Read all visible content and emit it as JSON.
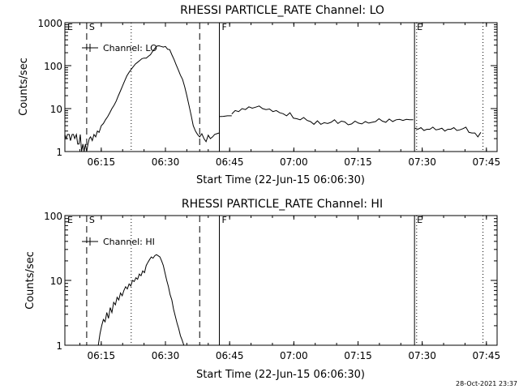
{
  "footer_timestamp": "28-Oct-2021 23:37",
  "chart_data": [
    {
      "type": "line",
      "title": "RHESSI PARTICLE_RATE Channel: LO",
      "xlabel": "Start Time (22-Jun-15 06:06:30)",
      "ylabel": "Counts/sec",
      "x_unit": "minutes since 06:06:30",
      "xlim": [
        0,
        101
      ],
      "ylim": [
        1,
        1000
      ],
      "yscale": "log",
      "grid": false,
      "x_ticks": [
        {
          "label": "06:15",
          "x": 8.5
        },
        {
          "label": "06:30",
          "x": 23.5
        },
        {
          "label": "06:45",
          "x": 38.5
        },
        {
          "label": "07:00",
          "x": 53.5
        },
        {
          "label": "07:15",
          "x": 68.5
        },
        {
          "label": "07:30",
          "x": 83.5
        },
        {
          "label": "07:45",
          "x": 98.5
        }
      ],
      "y_ticks": [
        {
          "label": "1",
          "value": 1
        },
        {
          "label": "10",
          "value": 10
        },
        {
          "label": "100",
          "value": 100
        },
        {
          "label": "1000",
          "value": 1000
        }
      ],
      "legend": {
        "label": "Channel: LO",
        "position": "top-left"
      },
      "markers": [
        {
          "label": "E",
          "x": 0,
          "style": "solid"
        },
        {
          "label": "S",
          "x": 5.1,
          "style": "dashed"
        },
        {
          "label": "",
          "x": 15.5,
          "style": "dotted"
        },
        {
          "label": "",
          "x": 31.5,
          "style": "dashed"
        },
        {
          "label": "F",
          "x": 36.1,
          "style": "solid"
        },
        {
          "label": "E",
          "x": 81.7,
          "style": "solid"
        },
        {
          "label": "",
          "x": 82.2,
          "style": "dotted"
        },
        {
          "label": "",
          "x": 97.7,
          "style": "dotted"
        }
      ],
      "series": [
        {
          "name": "Channel: LO",
          "segments": [
            {
              "x": [
                0,
                0.3,
                0.6,
                1,
                1.3,
                1.7,
                2,
                2.3,
                2.7,
                3,
                3.3,
                3.6,
                3.9,
                4.2,
                4.5,
                4.8,
                5.1,
                5.4,
                5.7,
                6,
                6.4,
                6.8,
                7.2,
                7.6,
                8,
                8.5,
                9,
                9.5,
                10,
                10.5,
                11,
                11.5,
                12,
                12.5,
                13,
                13.5,
                14,
                14.5,
                15,
                15.5,
                16,
                16.5,
                17,
                17.5,
                18,
                18.5,
                19,
                19.5,
                20,
                20.5,
                21,
                21.5,
                22,
                22.5,
                23,
                23.5,
                24,
                24.5,
                25,
                25.5,
                26,
                26.5,
                27,
                27.5,
                28,
                28.5,
                29,
                29.5,
                30,
                30.5,
                31,
                31.5,
                32,
                32.5,
                33,
                33.5,
                34,
                34.5,
                35,
                35.5,
                36
              ],
              "y": [
                2.5,
                2,
                2.5,
                2.5,
                1.8,
                2.5,
                2.5,
                2,
                2.5,
                1.5,
                1.5,
                2.5,
                1,
                1.5,
                1,
                1.5,
                1,
                1.5,
                2,
                2.2,
                1.8,
                2.5,
                2.2,
                3,
                2.8,
                4,
                4.5,
                5.5,
                6.5,
                8,
                10,
                12,
                15,
                20,
                26,
                34,
                45,
                58,
                70,
                82,
                95,
                110,
                120,
                132,
                145,
                150,
                150,
                165,
                180,
                215,
                250,
                285,
                290,
                280,
                270,
                280,
                240,
                235,
                180,
                140,
                105,
                80,
                60,
                48,
                32,
                20,
                12,
                7,
                4,
                3,
                2.5,
                2.2,
                2.6,
                2,
                1.7,
                2.4,
                2,
                2.2,
                2.5,
                2.6,
                2.7
              ]
            },
            {
              "x": [
                36,
                37,
                38,
                39
              ],
              "y": [
                6.5,
                6.6,
                6.8,
                6.8
              ]
            },
            {
              "x": [
                39,
                39.8,
                40.6,
                41.4,
                42.2,
                43,
                43.8,
                44.6,
                45.4,
                46.2,
                47,
                47.8,
                48.6,
                49.4,
                50.2,
                51,
                51.8,
                52.6,
                53.4,
                54.2,
                55,
                55.8,
                56.6,
                57.4,
                58.2,
                59,
                59.8,
                60.6,
                61.4,
                62.2,
                63,
                63.8,
                64.6,
                65.4,
                66.2,
                67,
                67.8,
                68.6,
                69.4,
                70.2,
                71,
                71.8,
                72.6,
                73.4,
                74.2,
                75,
                75.8,
                76.6,
                77.4,
                78.2,
                79,
                79.8,
                80.6,
                81.4
              ],
              "y": [
                7.5,
                9,
                8.5,
                10,
                9.5,
                11,
                10.2,
                10.8,
                11.5,
                10,
                9.5,
                9.8,
                8.5,
                9,
                8,
                7.6,
                6.8,
                8,
                6,
                5.8,
                5.5,
                6.2,
                5.3,
                5,
                4.3,
                5.2,
                4.3,
                4.7,
                4.5,
                4.8,
                5.5,
                4.5,
                5.1,
                4.9,
                4.2,
                4.4,
                5.1,
                4.6,
                4.4,
                5,
                4.6,
                4.8,
                5,
                5.8,
                5.1,
                4.8,
                5.7,
                5,
                5.5,
                5.6,
                5.3,
                5.6,
                5.5,
                5.5
              ]
            },
            {
              "x": [
                81.8,
                82.5,
                83.2,
                83.9,
                84.6,
                85.3,
                86,
                86.7,
                87.4,
                88.1,
                88.8,
                89.5,
                90.2,
                90.9,
                91.6,
                92.3,
                93,
                93.7,
                94.4,
                95.1,
                95.8,
                96.5,
                97.2
              ],
              "y": [
                3.5,
                3.3,
                3.6,
                3.1,
                3.3,
                3.3,
                3.7,
                3.2,
                3.3,
                3.5,
                3,
                3.3,
                3.3,
                3.6,
                3.1,
                3.2,
                3.4,
                3.7,
                2.8,
                2.7,
                2.7,
                2.2,
                2.8
              ]
            }
          ]
        }
      ]
    },
    {
      "type": "line",
      "title": "RHESSI PARTICLE_RATE Channel: HI",
      "xlabel": "Start Time (22-Jun-15 06:06:30)",
      "ylabel": "Counts/sec",
      "x_unit": "minutes since 06:06:30",
      "xlim": [
        0,
        101
      ],
      "ylim": [
        1,
        100
      ],
      "yscale": "log",
      "grid": false,
      "x_ticks": [
        {
          "label": "06:15",
          "x": 8.5
        },
        {
          "label": "06:30",
          "x": 23.5
        },
        {
          "label": "06:45",
          "x": 38.5
        },
        {
          "label": "07:00",
          "x": 53.5
        },
        {
          "label": "07:15",
          "x": 68.5
        },
        {
          "label": "07:30",
          "x": 83.5
        },
        {
          "label": "07:45",
          "x": 98.5
        }
      ],
      "y_ticks": [
        {
          "label": "1",
          "value": 1
        },
        {
          "label": "10",
          "value": 10
        },
        {
          "label": "100",
          "value": 100
        }
      ],
      "legend": {
        "label": "Channel: HI",
        "position": "top-left"
      },
      "markers": [
        {
          "label": "E",
          "x": 0,
          "style": "solid"
        },
        {
          "label": "S",
          "x": 5.1,
          "style": "dashed"
        },
        {
          "label": "",
          "x": 15.5,
          "style": "dotted"
        },
        {
          "label": "",
          "x": 31.5,
          "style": "dashed"
        },
        {
          "label": "F",
          "x": 36.1,
          "style": "solid"
        },
        {
          "label": "E",
          "x": 81.7,
          "style": "solid"
        },
        {
          "label": "",
          "x": 82.2,
          "style": "dotted"
        },
        {
          "label": "",
          "x": 97.7,
          "style": "dotted"
        }
      ],
      "series": [
        {
          "name": "Channel: HI",
          "segments": [
            {
              "x": [
                7.8,
                8.2,
                8.6,
                9,
                9.4,
                9.8,
                10.2,
                10.6,
                11,
                11.4,
                11.8,
                12.2,
                12.6,
                13,
                13.4,
                13.8,
                14.2,
                14.6,
                15,
                15.4,
                15.8,
                16.2,
                16.6,
                17,
                17.4,
                17.8,
                18.2,
                18.6,
                19,
                19.4,
                19.8,
                20.2,
                20.6,
                21,
                21.4,
                21.8,
                22.2,
                22.6,
                23,
                23.4,
                23.8,
                24.2,
                24.6,
                25,
                25.4,
                25.8,
                26.2,
                26.6,
                27,
                27.4,
                27.8
              ],
              "y": [
                1,
                1.5,
                2,
                2.5,
                2.3,
                3.2,
                2.6,
                3.8,
                3.2,
                4.6,
                4.2,
                5.5,
                5,
                6.4,
                5.8,
                7,
                8,
                7.4,
                8.8,
                8.2,
                10,
                9.6,
                11,
                10.4,
                12.5,
                11.8,
                14,
                13.2,
                17,
                19,
                21,
                23,
                22,
                24,
                25,
                24,
                23,
                20,
                17,
                13,
                10,
                8,
                6,
                5,
                3.6,
                2.8,
                2.2,
                1.8,
                1.4,
                1.2,
                1
              ]
            }
          ]
        }
      ]
    }
  ]
}
